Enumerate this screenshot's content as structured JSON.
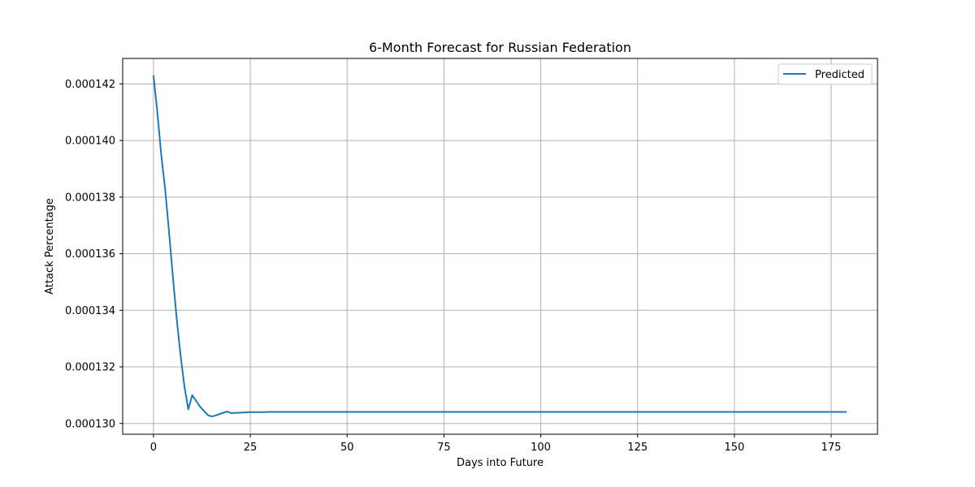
{
  "chart_data": {
    "type": "line",
    "title": "6-Month Forecast for Russian Federation",
    "xlabel": "Days into Future",
    "ylabel": "Attack Percentage",
    "xlim": [
      -7.95,
      186.95
    ],
    "ylim": [
      0.00012962,
      0.0001429
    ],
    "xticks": [
      0,
      25,
      50,
      75,
      100,
      125,
      150,
      175
    ],
    "xtick_labels": [
      "0",
      "25",
      "50",
      "75",
      "100",
      "125",
      "150",
      "175"
    ],
    "yticks": [
      0.00013,
      0.000132,
      0.000134,
      0.000136,
      0.000138,
      0.00014,
      0.000142
    ],
    "ytick_labels": [
      "0.000130",
      "0.000132",
      "0.000134",
      "0.000136",
      "0.000138",
      "0.000140",
      "0.000142"
    ],
    "grid": true,
    "legend_position": "top-right",
    "series": [
      {
        "name": "Predicted",
        "color": "#1f77b4",
        "x": [
          0,
          1,
          2,
          3,
          4,
          5,
          6,
          7,
          8,
          9,
          10,
          11,
          12,
          13,
          14,
          15,
          16,
          17,
          18,
          19,
          20,
          22,
          25,
          28,
          30,
          40,
          50,
          60,
          75,
          100,
          125,
          150,
          179
        ],
        "y": [
          0.0001423,
          0.000141,
          0.0001395,
          0.0001383,
          0.0001368,
          0.0001352,
          0.0001337,
          0.0001324,
          0.0001313,
          0.0001305,
          0.000131,
          0.0001308,
          0.0001306,
          0.00013045,
          0.0001303,
          0.00013025,
          0.00013028,
          0.00013033,
          0.00013038,
          0.00013042,
          0.00013037,
          0.00013038,
          0.0001304,
          0.0001304,
          0.00013041,
          0.00013041,
          0.00013041,
          0.00013041,
          0.00013041,
          0.00013041,
          0.00013041,
          0.00013041,
          0.00013041
        ]
      }
    ]
  }
}
